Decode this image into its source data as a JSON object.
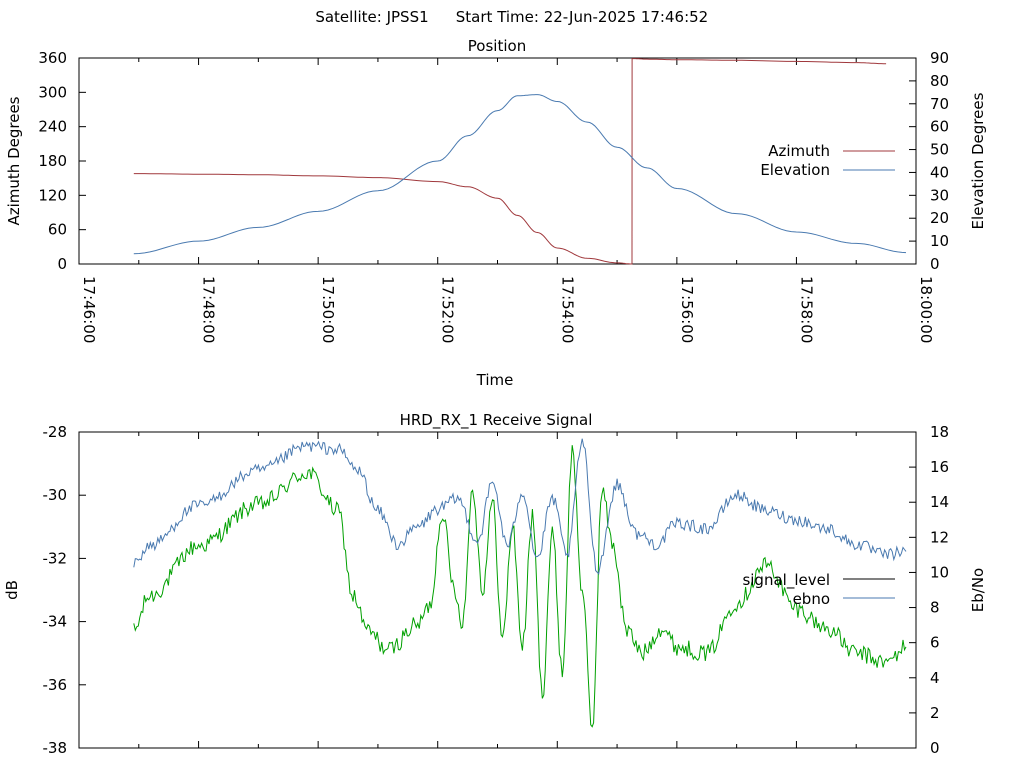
{
  "header": {
    "satellite": "Satellite: JPSS1",
    "start_time": "Start Time: 22-Jun-2025 17:46:52"
  },
  "colors": {
    "azimuth": "#a0383c",
    "elevation": "#4a7ab0",
    "signal_level": "#000000",
    "ebno": "#4a7ab0",
    "green_trace": "#00a000"
  },
  "chart_data": [
    {
      "type": "line",
      "title": "Position",
      "xlabel": "Time",
      "ylabel": "Azimuth Degrees",
      "y2label": "Elevation Degrees",
      "xlim": [
        "17:46:00",
        "18:00:00"
      ],
      "xticks": [
        "17:46:00",
        "17:48:00",
        "17:50:00",
        "17:52:00",
        "17:54:00",
        "17:56:00",
        "17:58:00",
        "18:00:00"
      ],
      "ylim": [
        0,
        360
      ],
      "yticks": [
        "0",
        "60",
        "120",
        "180",
        "240",
        "300",
        "360"
      ],
      "y2lim": [
        0,
        90
      ],
      "y2ticks": [
        "0",
        "10",
        "20",
        "30",
        "40",
        "50",
        "60",
        "70",
        "80",
        "90"
      ],
      "legend": "right",
      "series": [
        {
          "name": "Azimuth",
          "axis": "y",
          "x": [
            "17:46:55",
            "17:48:00",
            "17:49:00",
            "17:50:00",
            "17:51:00",
            "17:52:00",
            "17:52:30",
            "17:53:00",
            "17:53:20",
            "17:53:40",
            "17:54:00",
            "17:54:30",
            "17:55:00",
            "17:55:15",
            "17:55:16",
            "17:55:30",
            "17:56:00",
            "17:57:00",
            "17:58:00",
            "17:59:00",
            "17:59:30"
          ],
          "values": [
            158,
            157,
            156,
            154,
            151,
            144,
            135,
            115,
            85,
            55,
            28,
            10,
            2,
            0,
            359,
            358,
            357,
            356,
            354,
            352,
            350
          ]
        },
        {
          "name": "Elevation",
          "axis": "y2",
          "x": [
            "17:46:55",
            "17:48:00",
            "17:49:00",
            "17:50:00",
            "17:51:00",
            "17:52:00",
            "17:52:30",
            "17:53:00",
            "17:53:20",
            "17:53:40",
            "17:54:00",
            "17:54:30",
            "17:55:00",
            "17:55:30",
            "17:56:00",
            "17:57:00",
            "17:58:00",
            "17:59:00",
            "17:59:50"
          ],
          "values": [
            4.5,
            10,
            16,
            23,
            32,
            45,
            56,
            67,
            73.5,
            74,
            71,
            62,
            51,
            42,
            33,
            22,
            14,
            9,
            5
          ]
        }
      ]
    },
    {
      "type": "line",
      "title": "HRD_RX_1 Receive Signal",
      "xlabel": "",
      "ylabel": "dB",
      "y2label": "Eb/No",
      "xlim": [
        "17:46:00",
        "18:00:00"
      ],
      "ylim": [
        -38,
        -28
      ],
      "yticks": [
        "-38",
        "-36",
        "-34",
        "-32",
        "-30",
        "-28"
      ],
      "y2lim": [
        0,
        18
      ],
      "y2ticks": [
        "0",
        "2",
        "4",
        "6",
        "8",
        "10",
        "12",
        "14",
        "16",
        "18"
      ],
      "legend": "right",
      "legend_entries": [
        "signal_level",
        "ebno"
      ],
      "series": [
        {
          "name": "signal_level",
          "axis": "y",
          "color_key": "green_trace",
          "x": [
            "17:46:55",
            "17:47:10",
            "17:48:00",
            "17:49:00",
            "17:49:50",
            "17:50:20",
            "17:50:35",
            "17:50:50",
            "17:51:10",
            "17:51:40",
            "17:51:52",
            "17:52:05",
            "17:52:15",
            "17:52:25",
            "17:52:35",
            "17:52:45",
            "17:52:55",
            "17:53:05",
            "17:53:15",
            "17:53:25",
            "17:53:35",
            "17:53:45",
            "17:53:55",
            "17:54:05",
            "17:54:15",
            "17:54:25",
            "17:54:35",
            "17:54:45",
            "17:54:55",
            "17:55:10",
            "17:55:25",
            "17:55:45",
            "17:56:00",
            "17:56:30",
            "17:57:00",
            "17:57:30",
            "17:58:00",
            "17:58:30",
            "17:59:00",
            "17:59:30",
            "17:59:50"
          ],
          "values": [
            -34.3,
            -33.2,
            -31.6,
            -30.3,
            -29.3,
            -30.5,
            -33.2,
            -34.3,
            -34.9,
            -34.1,
            -33.5,
            -30.5,
            -32.8,
            -34.0,
            -29.8,
            -33.0,
            -30.2,
            -34.6,
            -31.0,
            -34.8,
            -30.7,
            -36.3,
            -31.2,
            -35.6,
            -28.6,
            -33.0,
            -37.4,
            -29.8,
            -31.5,
            -34.3,
            -35.0,
            -34.2,
            -34.8,
            -35.0,
            -33.4,
            -32.2,
            -33.6,
            -34.2,
            -35.0,
            -35.3,
            -34.8
          ]
        },
        {
          "name": "ebno",
          "axis": "y2",
          "x": [
            "17:46:55",
            "17:47:10",
            "17:48:00",
            "17:49:00",
            "17:49:50",
            "17:50:20",
            "17:50:40",
            "17:51:00",
            "17:51:20",
            "17:51:40",
            "17:52:00",
            "17:52:20",
            "17:52:40",
            "17:52:55",
            "17:53:10",
            "17:53:25",
            "17:53:40",
            "17:53:55",
            "17:54:10",
            "17:54:25",
            "17:54:40",
            "17:55:00",
            "17:55:20",
            "17:55:40",
            "17:56:00",
            "17:56:30",
            "17:57:00",
            "17:57:30",
            "17:58:00",
            "17:58:30",
            "17:59:00",
            "17:59:30",
            "17:59:50"
          ],
          "values": [
            10.5,
            11.5,
            13.8,
            15.8,
            17.2,
            17.0,
            15.8,
            13.5,
            11.6,
            12.6,
            13.6,
            14.2,
            11.8,
            15.1,
            11.5,
            14.6,
            10.8,
            14.2,
            11.0,
            17.4,
            10.2,
            15.0,
            12.2,
            11.6,
            12.8,
            12.5,
            14.4,
            13.5,
            13.0,
            12.5,
            11.6,
            11.0,
            11.2
          ]
        }
      ]
    }
  ]
}
